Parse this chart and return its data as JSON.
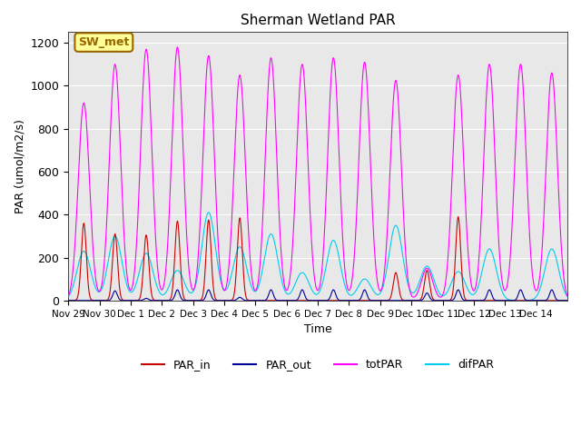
{
  "title": "Sherman Wetland PAR",
  "ylabel": "PAR (umol/m2/s)",
  "xlabel": "Time",
  "ylim": [
    0,
    1250
  ],
  "bg_color": "#e8e8e8",
  "line_colors": {
    "PAR_in": "#cc0000",
    "PAR_out": "#000099",
    "totPAR": "#ff00ff",
    "difPAR": "#00ccee"
  },
  "annotation_text": "SW_met",
  "annotation_bg": "#ffff99",
  "annotation_border": "#996600",
  "xtick_labels": [
    "Nov 29",
    "Nov 30",
    "Dec 1",
    "Dec 2",
    "Dec 3",
    "Dec 4",
    "Dec 5",
    "Dec 6",
    "Dec 7",
    "Dec 8",
    "Dec 9",
    "Dec 10",
    "Dec 11",
    "Dec 12",
    "Dec 13",
    "Dec 14"
  ],
  "totPAR_peaks": [
    920,
    1100,
    1170,
    1180,
    1140,
    1050,
    1130,
    1100,
    1130,
    1110,
    1025,
    150,
    1050,
    1100,
    1100,
    1060
  ],
  "PAR_in_peaks": [
    360,
    310,
    305,
    370,
    375,
    385,
    0,
    0,
    0,
    0,
    130,
    140,
    390,
    0,
    0,
    0
  ],
  "PAR_out_peaks": [
    0,
    45,
    10,
    50,
    50,
    15,
    50,
    50,
    50,
    50,
    0,
    35,
    50,
    50,
    50,
    50
  ],
  "difPAR_peaks": [
    230,
    300,
    220,
    140,
    410,
    250,
    310,
    130,
    280,
    100,
    350,
    160,
    135,
    240,
    0,
    240
  ],
  "num_days": 16,
  "samples_per_day": 200
}
